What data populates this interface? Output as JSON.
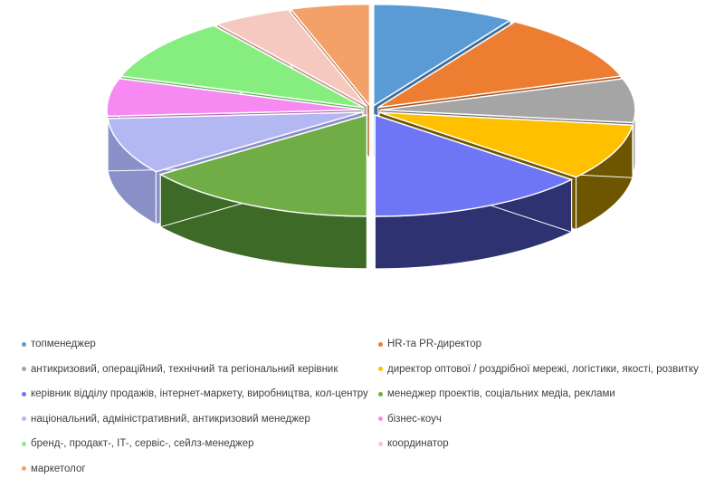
{
  "chart_data": {
    "type": "pie",
    "style": "3d-exploded",
    "title": "",
    "legend_position": "bottom",
    "slices": [
      {
        "label": "топменеджер",
        "value": 9,
        "color": "#5B9BD5",
        "side": "#3F6F9B"
      },
      {
        "label": "HR-та PR-директор",
        "value": 11,
        "color": "#ED7D31",
        "side": "#A85420"
      },
      {
        "label": "антикризовий, операційний, технічний та регіональний керівник",
        "value": 7,
        "color": "#A5A5A5",
        "side": "#6E6E6E"
      },
      {
        "label": "директор оптової / роздрібної мережі, логістики, якості, розвитку",
        "value": 9,
        "color": "#FFC000",
        "side": "#6E5500"
      },
      {
        "label": "керівник відділу продажів, інтернет-маркету, виробництва, кол-центру",
        "value": 14,
        "color": "#6E76F5",
        "side": "#2E3270"
      },
      {
        "label": "менеджер проектів, соціальних медіа, реклами",
        "value": 15,
        "color": "#70AD47",
        "side": "#3E6A27"
      },
      {
        "label": "національний, адміністративний, антикризовий менеджер",
        "value": 9,
        "color": "#B4B8F2",
        "side": "#8A8FC8"
      },
      {
        "label": "бізнес-коуч",
        "value": 6,
        "color": "#F78AF2",
        "side": "#B85FB3"
      },
      {
        "label": "бренд-, продакт-, IT-, сервіс-, сейлз-менеджер",
        "value": 10,
        "color": "#86EE7E",
        "side": "#5BB653"
      },
      {
        "label": "координатор",
        "value": 5,
        "color": "#F5C9C0",
        "side": "#C49A91"
      },
      {
        "label": "маркетолог",
        "value": 5,
        "color": "#F4A069",
        "side": "#C0743F"
      }
    ]
  }
}
